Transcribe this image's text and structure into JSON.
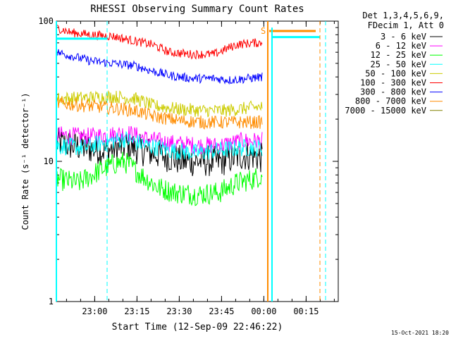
{
  "chart_data": {
    "type": "line",
    "title": "RHESSI Observing Summary Count Rates",
    "xlabel": "Start Time (12-Sep-09 22:46:22)",
    "ylabel": "Count Rate (s⁻¹ detector⁻¹)",
    "y_scale": "log",
    "ylim": [
      1,
      100
    ],
    "y_ticks": [
      {
        "value": 1,
        "label": "1"
      },
      {
        "value": 10,
        "label": "10"
      },
      {
        "value": 100,
        "label": "100"
      }
    ],
    "x_unit": "minutes after 22:46:22",
    "xlim": [
      0,
      100
    ],
    "x_ticks": [
      {
        "value": 13.6,
        "label": "23:00"
      },
      {
        "value": 28.6,
        "label": "23:15"
      },
      {
        "value": 43.6,
        "label": "23:30"
      },
      {
        "value": 58.6,
        "label": "23:45"
      },
      {
        "value": 73.6,
        "label": "00:00"
      },
      {
        "value": 88.6,
        "label": "00:15"
      }
    ],
    "legend_header": [
      "Det 1,3,4,5,6,9,",
      "FDecim 1, Att 0"
    ],
    "legend_position": "right",
    "series": [
      {
        "name": "3 - 6 keV",
        "color": "#000000",
        "noise": 0.07,
        "x": [
          0,
          10,
          18,
          25,
          30,
          38,
          45,
          52,
          58,
          62,
          66,
          70,
          73
        ],
        "values": [
          13.5,
          12.5,
          12.0,
          13.0,
          12.0,
          11.0,
          10.0,
          10.0,
          10.0,
          10.5,
          11.0,
          11.0,
          10.5
        ]
      },
      {
        "name": "6 - 12 keV",
        "color": "#ff00ff",
        "noise": 0.04,
        "x": [
          0,
          10,
          20,
          25,
          32,
          40,
          50,
          58,
          66,
          73
        ],
        "values": [
          15.5,
          15.0,
          15.5,
          16.0,
          14.5,
          13.5,
          13.0,
          13.0,
          14.0,
          14.0
        ]
      },
      {
        "name": "12 - 25 keV",
        "color": "#00ff00",
        "noise": 0.05,
        "x": [
          0,
          8,
          15,
          20,
          24,
          30,
          36,
          42,
          50,
          58,
          64,
          70,
          73
        ],
        "values": [
          7.5,
          7.0,
          8.5,
          9.5,
          10.0,
          8.0,
          6.5,
          6.0,
          5.8,
          6.0,
          7.0,
          7.5,
          8.0
        ]
      },
      {
        "name": "25 - 50 keV",
        "color": "#00ffff",
        "noise": 0.04,
        "x": [
          0,
          10,
          16,
          24,
          32,
          40,
          50,
          58,
          66,
          73
        ],
        "values": [
          13.0,
          12.5,
          13.5,
          14.5,
          13.0,
          12.0,
          11.5,
          12.0,
          12.5,
          12.5
        ]
      },
      {
        "name": "50 - 100 keV",
        "color": "#cccc00",
        "noise": 0.03,
        "x": [
          0,
          12,
          20,
          28,
          34,
          44,
          52,
          60,
          68,
          73
        ],
        "values": [
          28.0,
          28.5,
          29.0,
          28.0,
          25.0,
          23.5,
          23.0,
          23.0,
          24.0,
          24.5
        ]
      },
      {
        "name": "100 - 300 keV",
        "color": "#ff0000",
        "noise": 0.02,
        "x": [
          0,
          5,
          12,
          20,
          28,
          34,
          40,
          48,
          56,
          60,
          64,
          70,
          73
        ],
        "values": [
          90,
          83,
          80,
          78,
          72,
          68,
          60,
          58,
          58,
          63,
          68,
          70,
          70
        ]
      },
      {
        "name": "300 - 800 keV",
        "color": "#0000ff",
        "noise": 0.02,
        "x": [
          0,
          6,
          12,
          20,
          28,
          34,
          40,
          48,
          56,
          62,
          68,
          73
        ],
        "values": [
          60,
          56,
          52,
          50,
          48,
          44,
          41,
          39,
          39,
          38,
          39,
          40
        ]
      },
      {
        "name": "800 - 7000 keV",
        "color": "#ff8c00",
        "noise": 0.03,
        "x": [
          0,
          10,
          20,
          28,
          34,
          44,
          52,
          60,
          68,
          73
        ],
        "values": [
          26.0,
          25.0,
          24.0,
          23.0,
          21.0,
          19.5,
          19.0,
          19.0,
          19.0,
          19.0
        ]
      },
      {
        "name": "7000 - 15000 keV",
        "color": "#808000",
        "noise": 0.03,
        "x": [],
        "values": []
      }
    ],
    "offset_series": [
      {
        "name": "3 - 6 keV",
        "color": "#00ffff",
        "x": [
          0,
          18
        ],
        "values": [
          75,
          75
        ]
      },
      {
        "name": "3 - 6 keV",
        "color": "#00ffff",
        "x": [
          76.5,
          93.5
        ],
        "values": [
          77,
          77
        ]
      },
      {
        "name": "100 - 300 keV",
        "color": "#ff8c00",
        "x": [
          75.5,
          92
        ],
        "values": [
          85,
          85
        ]
      }
    ],
    "annotations": [
      {
        "text": "S",
        "color": "#ff8c00",
        "x": 73.4,
        "y": 85
      }
    ],
    "markers": [
      {
        "x": 0,
        "color": "#00ffff",
        "style": "solid",
        "from": 1,
        "to": 100
      },
      {
        "x": 18,
        "color": "#00ffff",
        "style": "dashed",
        "from": 1,
        "to": 100
      },
      {
        "x": 75,
        "color": "#ff8c00",
        "style": "solid",
        "from": 1,
        "to": 100
      },
      {
        "x": 76.5,
        "color": "#00ffff",
        "style": "solid",
        "from": 1,
        "to": 90
      },
      {
        "x": 93.5,
        "color": "#ff8c00",
        "style": "dashed",
        "from": 1,
        "to": 100
      },
      {
        "x": 95.5,
        "color": "#00ffff",
        "style": "dashed",
        "from": 1,
        "to": 100
      }
    ],
    "grid": false,
    "timestamp": "15-Oct-2021 18:20"
  }
}
